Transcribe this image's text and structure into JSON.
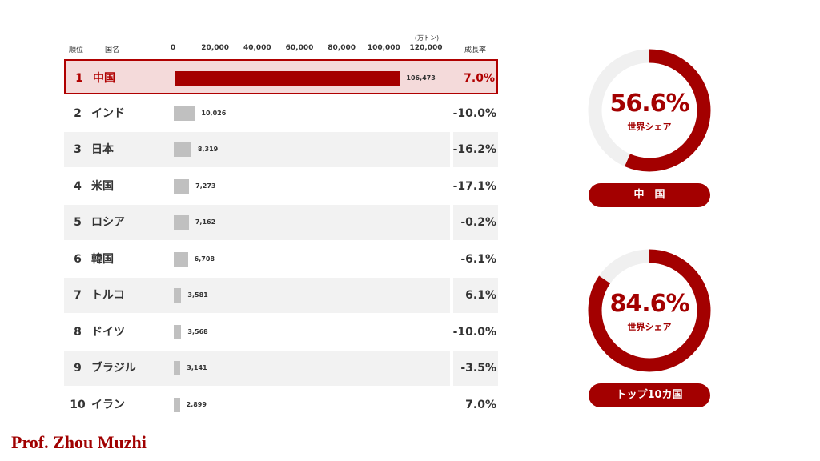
{
  "headers": {
    "rank": "順位",
    "name": "国名",
    "growth": "成長率",
    "unit": "(万トン)"
  },
  "axis_ticks": [
    "0",
    "20,000",
    "40,000",
    "60,000",
    "80,000",
    "100,000",
    "120,000"
  ],
  "colors": {
    "accent": "#a30000",
    "bar": "#c0c0c0",
    "highlight_bg": "#f4dada",
    "row_shade": "#f2f2f2"
  },
  "chart_data": {
    "type": "bar",
    "title": "",
    "xlim": [
      0,
      120000
    ],
    "unit": "(万トン)",
    "categories": [
      "中国",
      "インド",
      "日本",
      "米国",
      "ロシア",
      "韓国",
      "トルコ",
      "ドイツ",
      "ブラジル",
      "イラン"
    ],
    "ranks": [
      "1",
      "2",
      "3",
      "4",
      "5",
      "6",
      "7",
      "8",
      "9",
      "10"
    ],
    "values": [
      106473,
      10026,
      8319,
      7273,
      7162,
      6708,
      3581,
      3568,
      3141,
      2899
    ],
    "value_labels": [
      "106,473",
      "10,026",
      "8,319",
      "7,273",
      "7,162",
      "6,708",
      "3,581",
      "3,568",
      "3,141",
      "2,899"
    ],
    "growth": [
      "7.0%",
      "-10.0%",
      "-16.2%",
      "-17.1%",
      "-0.2%",
      "-6.1%",
      "6.1%",
      "-10.0%",
      "-3.5%",
      "7.0%"
    ],
    "highlighted_rank": "1"
  },
  "donuts": [
    {
      "value": 56.6,
      "percent_label": "56.6%",
      "caption": "世界シェア",
      "pill_label": "中　国"
    },
    {
      "value": 84.6,
      "percent_label": "84.6%",
      "caption": "世界シェア",
      "pill_label": "トップ10カ国"
    }
  ],
  "footer": {
    "author": "Prof. Zhou Muzhi"
  }
}
